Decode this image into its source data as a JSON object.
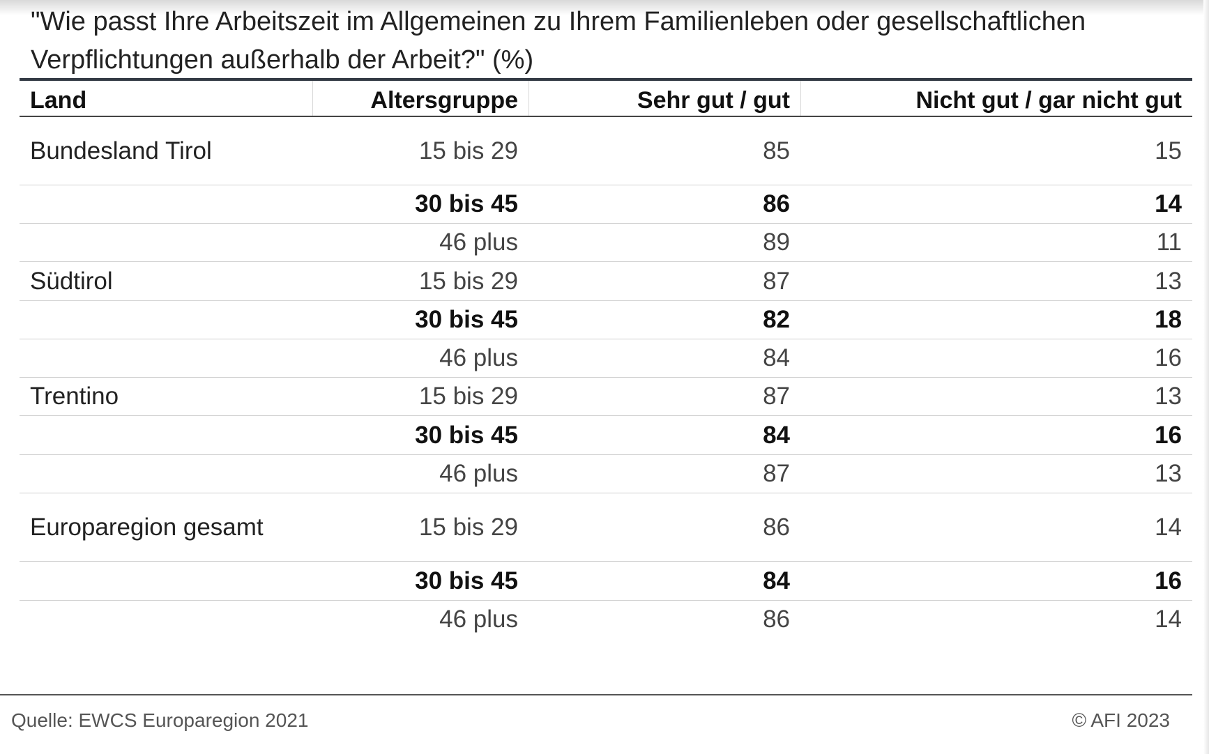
{
  "title": "\"Wie passt Ihre Arbeitszeit im Allgemeinen zu Ihrem Familienleben oder gesellschaftlichen Verpflichtungen außerhalb der Arbeit?\" (%)",
  "footer": {
    "source": "Quelle: EWCS Europaregion 2021",
    "credit": "© AFI 2023"
  },
  "chart_data": {
    "type": "table",
    "title": "\"Wie passt Ihre Arbeitszeit im Allgemeinen zu Ihrem Familienleben oder gesellschaftlichen Verpflichtungen außerhalb der Arbeit?\" (%)",
    "columns": [
      "Land",
      "Altersgruppe",
      "Sehr gut / gut",
      "Nicht gut / gar nicht gut"
    ],
    "rows": [
      {
        "land": "Bundesland Tirol",
        "age": "15 bis 29",
        "good": 85,
        "bad": 15
      },
      {
        "land": "",
        "age": "30 bis 45",
        "good": 86,
        "bad": 14
      },
      {
        "land": "",
        "age": "46 plus",
        "good": 89,
        "bad": 11
      },
      {
        "land": "Südtirol",
        "age": "15 bis 29",
        "good": 87,
        "bad": 13
      },
      {
        "land": "",
        "age": "30 bis 45",
        "good": 82,
        "bad": 18
      },
      {
        "land": "",
        "age": "46 plus",
        "good": 84,
        "bad": 16
      },
      {
        "land": "Trentino",
        "age": "15 bis 29",
        "good": 87,
        "bad": 13
      },
      {
        "land": "",
        "age": "30 bis 45",
        "good": 84,
        "bad": 16
      },
      {
        "land": "",
        "age": "46 plus",
        "good": 87,
        "bad": 13
      },
      {
        "land": "Europaregion gesamt",
        "age": "15 bis 29",
        "good": 86,
        "bad": 14
      },
      {
        "land": "",
        "age": "30 bis 45",
        "good": 84,
        "bad": 16
      },
      {
        "land": "",
        "age": "46 plus",
        "good": 86,
        "bad": 14
      }
    ]
  }
}
